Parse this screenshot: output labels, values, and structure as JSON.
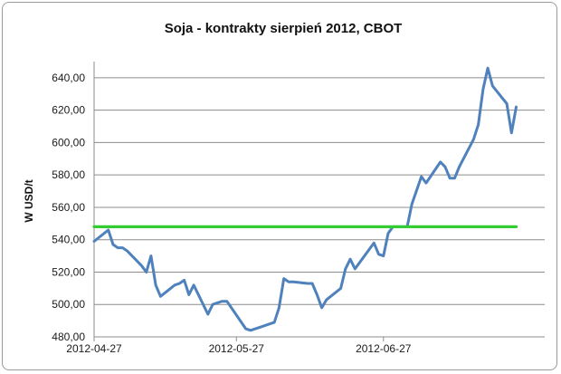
{
  "chart_data": {
    "type": "line",
    "title": "Soja - kontrakty sierpień 2012, CBOT",
    "ylabel": "W USD/t",
    "xlabel": "",
    "ylim": [
      480,
      650
    ],
    "yticks": [
      480,
      500,
      520,
      540,
      560,
      580,
      600,
      620,
      640
    ],
    "ytick_labels": [
      "480,00",
      "500,00",
      "520,00",
      "540,00",
      "560,00",
      "580,00",
      "600,00",
      "620,00",
      "640,00"
    ],
    "xlim": [
      "2012-04-27",
      "2012-07-31"
    ],
    "xticks": [
      "2012-04-27",
      "2012-05-27",
      "2012-06-27"
    ],
    "grid": true,
    "legend": "none",
    "series": [
      {
        "color": "#4f81bd",
        "x": [
          "2012-04-27",
          "2012-04-30",
          "2012-05-01",
          "2012-05-02",
          "2012-05-03",
          "2012-05-04",
          "2012-05-07",
          "2012-05-08",
          "2012-05-09",
          "2012-05-10",
          "2012-05-11",
          "2012-05-14",
          "2012-05-15",
          "2012-05-16",
          "2012-05-17",
          "2012-05-18",
          "2012-05-21",
          "2012-05-22",
          "2012-05-23",
          "2012-05-24",
          "2012-05-25",
          "2012-05-29",
          "2012-05-30",
          "2012-05-31",
          "2012-06-01",
          "2012-06-04",
          "2012-06-05",
          "2012-06-06",
          "2012-06-07",
          "2012-06-08",
          "2012-06-11",
          "2012-06-12",
          "2012-06-13",
          "2012-06-14",
          "2012-06-15",
          "2012-06-18",
          "2012-06-19",
          "2012-06-20",
          "2012-06-21",
          "2012-06-22",
          "2012-06-25",
          "2012-06-26",
          "2012-06-27",
          "2012-06-28",
          "2012-06-29",
          "2012-07-02",
          "2012-07-03",
          "2012-07-05",
          "2012-07-06",
          "2012-07-09",
          "2012-07-10",
          "2012-07-11",
          "2012-07-12",
          "2012-07-13",
          "2012-07-16",
          "2012-07-17",
          "2012-07-18",
          "2012-07-19",
          "2012-07-20",
          "2012-07-23",
          "2012-07-24",
          "2012-07-25"
        ],
        "values": [
          539,
          546,
          537,
          535,
          535,
          533,
          524,
          520,
          530,
          512,
          505,
          512,
          513,
          515,
          506,
          512,
          494,
          500,
          501,
          502,
          502,
          485,
          484,
          485,
          486,
          489,
          498,
          516,
          514,
          514,
          513,
          513,
          506,
          498,
          503,
          510,
          522,
          528,
          522,
          526,
          538,
          531,
          530,
          544,
          548,
          548,
          562,
          579,
          575,
          588,
          585,
          578,
          578,
          585,
          602,
          611,
          633,
          646,
          635,
          624,
          606,
          622
        ]
      },
      {
        "color": "#33cc33",
        "x": [
          "2012-04-27",
          "2012-07-25"
        ],
        "values": [
          548,
          548
        ]
      }
    ]
  }
}
